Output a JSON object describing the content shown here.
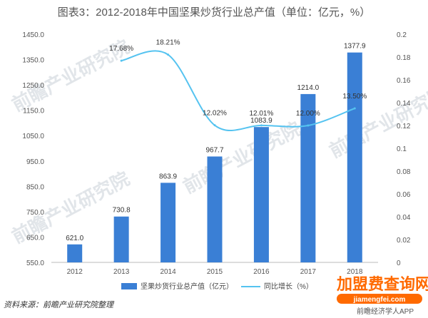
{
  "chart_data": {
    "type": "bar",
    "title": "图表3：2012-2018年中国坚果炒货行业总产值（单位：亿元，%）",
    "categories": [
      "2012",
      "2013",
      "2014",
      "2015",
      "2016",
      "2017",
      "2018"
    ],
    "series": [
      {
        "name": "坚果炒货行业总产值（亿元）",
        "type": "bar",
        "axis": "left",
        "values": [
          621.0,
          730.8,
          863.9,
          967.7,
          1083.9,
          1214.0,
          1377.9
        ],
        "labels": [
          "621.0",
          "730.8",
          "863.9",
          "967.7",
          "1083.9",
          "1214.0",
          "1377.9"
        ],
        "color": "#3a7fd5"
      },
      {
        "name": "同比增长（%）",
        "type": "line",
        "axis": "right",
        "values": [
          null,
          0.1768,
          0.1821,
          0.1202,
          0.1201,
          0.12,
          0.135
        ],
        "labels": [
          "",
          "17.68%",
          "18.21%",
          "12.02%",
          "12.01%",
          "12.00%",
          "13.50%"
        ],
        "color": "#55c3f0"
      }
    ],
    "y_left": {
      "min": 550,
      "max": 1450,
      "ticks": [
        "550.0",
        "650.0",
        "750.0",
        "850.0",
        "950.0",
        "1050.0",
        "1150.0",
        "1250.0",
        "1350.0",
        "1450.0"
      ]
    },
    "y_right": {
      "min": 0,
      "max": 0.2,
      "ticks": [
        "0",
        "0.02",
        "0.04",
        "0.06",
        "0.08",
        "0.1",
        "0.12",
        "0.14",
        "0.16",
        "0.18",
        "0.2"
      ]
    },
    "grid": false,
    "legend_position": "bottom"
  },
  "source": "资料来源：前瞻产业研究院整理",
  "watermark": "前瞻产业研究院",
  "corner_badge": {
    "main": "加盟费查询网",
    "url": "jiamengfei.com",
    "overlay": "前瞻经济学人APP"
  }
}
